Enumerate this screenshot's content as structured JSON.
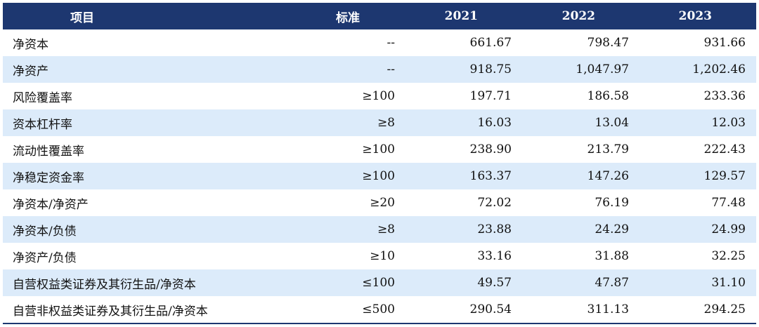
{
  "table": {
    "headers": [
      "项目",
      "标准",
      "2021",
      "2022",
      "2023"
    ],
    "rows": [
      [
        "净资本",
        "--",
        "661.67",
        "798.47",
        "931.66"
      ],
      [
        "净资产",
        "--",
        "918.75",
        "1,047.97",
        "1,202.46"
      ],
      [
        "风险覆盖率",
        "≥100",
        "197.71",
        "186.58",
        "233.36"
      ],
      [
        "资本杠杆率",
        "≥8",
        "16.03",
        "13.04",
        "12.03"
      ],
      [
        "流动性覆盖率",
        "≥100",
        "238.90",
        "213.79",
        "222.43"
      ],
      [
        "净稳定资金率",
        "≥100",
        "163.37",
        "147.26",
        "129.57"
      ],
      [
        "净资本/净资产",
        "≥20",
        "72.02",
        "76.19",
        "77.48"
      ],
      [
        "净资本/负债",
        "≥8",
        "23.88",
        "24.29",
        "24.99"
      ],
      [
        "净资产/负债",
        "≥10",
        "33.16",
        "31.88",
        "32.25"
      ],
      [
        "自营权益类证券及其衍生品/净资本",
        "≤100",
        "49.57",
        "47.87",
        "31.10"
      ],
      [
        "自营非权益类证券及其衍生品/净资本",
        "≤500",
        "290.54",
        "311.13",
        "294.25"
      ]
    ]
  },
  "colors": {
    "header_bg": "#1d3770",
    "row_shade": "#dcebfa"
  }
}
